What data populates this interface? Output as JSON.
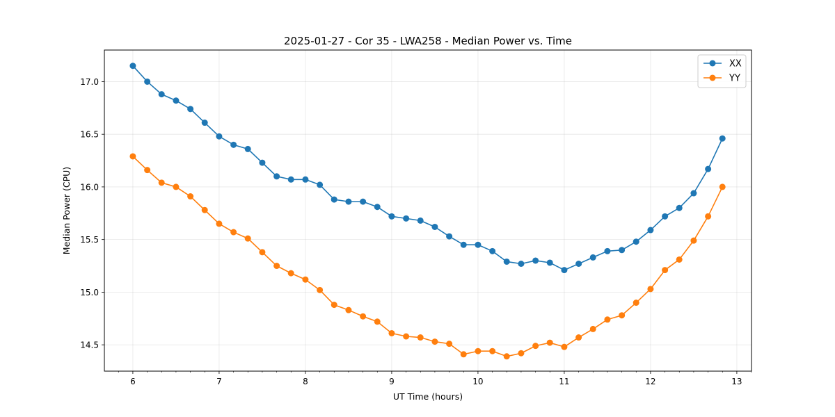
{
  "chart_data": {
    "type": "line",
    "title": "2025-01-27 - Cor 35 - LWA258 - Median Power vs. Time",
    "xlabel": "UT Time (hours)",
    "ylabel": "Median Power (CPU)",
    "xlim": [
      5.67,
      13.17
    ],
    "ylim": [
      14.25,
      17.3
    ],
    "xticks": [
      6,
      7,
      8,
      9,
      10,
      11,
      12,
      13
    ],
    "yticks": [
      14.5,
      15.0,
      15.5,
      16.0,
      16.5,
      17.0
    ],
    "xtick_labels": [
      "6",
      "7",
      "8",
      "9",
      "10",
      "11",
      "12",
      "13"
    ],
    "ytick_labels": [
      "14.5",
      "15.0",
      "15.5",
      "16.0",
      "16.5",
      "17.0"
    ],
    "grid": true,
    "legend_position": "top-right",
    "x": [
      6.0,
      6.167,
      6.333,
      6.5,
      6.667,
      6.833,
      7.0,
      7.167,
      7.333,
      7.5,
      7.667,
      7.833,
      8.0,
      8.167,
      8.333,
      8.5,
      8.667,
      8.833,
      9.0,
      9.167,
      9.333,
      9.5,
      9.667,
      9.833,
      10.0,
      10.167,
      10.333,
      10.5,
      10.667,
      10.833,
      11.0,
      11.167,
      11.333,
      11.5,
      11.667,
      11.833,
      12.0,
      12.167,
      12.333,
      12.5,
      12.667,
      12.833
    ],
    "series": [
      {
        "name": "XX",
        "color": "#1f77b4",
        "values": [
          17.15,
          17.0,
          16.88,
          16.82,
          16.74,
          16.61,
          16.48,
          16.4,
          16.36,
          16.23,
          16.1,
          16.07,
          16.07,
          16.02,
          15.88,
          15.86,
          15.86,
          15.81,
          15.72,
          15.7,
          15.68,
          15.62,
          15.53,
          15.45,
          15.45,
          15.39,
          15.29,
          15.27,
          15.3,
          15.28,
          15.21,
          15.27,
          15.33,
          15.39,
          15.4,
          15.48,
          15.59,
          15.72,
          15.8,
          15.94,
          16.17,
          16.46
        ]
      },
      {
        "name": "YY",
        "color": "#ff7f0e",
        "values": [
          16.29,
          16.16,
          16.04,
          16.0,
          15.91,
          15.78,
          15.65,
          15.57,
          15.51,
          15.38,
          15.25,
          15.18,
          15.12,
          15.02,
          14.88,
          14.83,
          14.77,
          14.72,
          14.61,
          14.58,
          14.57,
          14.53,
          14.51,
          14.41,
          14.44,
          14.44,
          14.39,
          14.42,
          14.49,
          14.52,
          14.48,
          14.57,
          14.65,
          14.74,
          14.78,
          14.9,
          15.03,
          15.21,
          15.31,
          15.49,
          15.72,
          16.0
        ]
      }
    ]
  }
}
